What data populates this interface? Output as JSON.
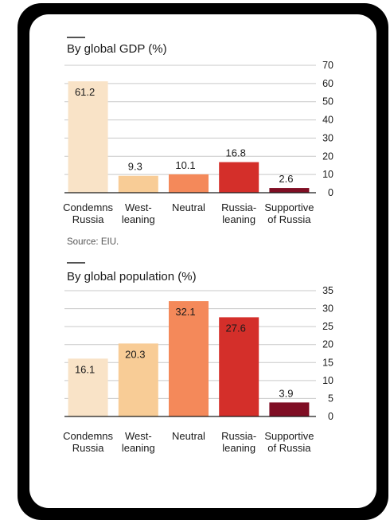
{
  "chart_data": [
    {
      "type": "bar",
      "title": "By global GDP (%)",
      "categories": [
        [
          "Condemns",
          "Russia"
        ],
        [
          "West-",
          "leaning"
        ],
        [
          "Neutral"
        ],
        [
          "Russia-",
          "leaning"
        ],
        [
          "Supportive",
          "of Russia"
        ]
      ],
      "values": [
        61.2,
        9.3,
        10.1,
        16.8,
        2.6
      ],
      "value_labels": [
        "61.2",
        "9.3",
        "10.1",
        "16.8",
        "2.6"
      ],
      "colors": [
        "#f9e3c7",
        "#f8cc96",
        "#f4895a",
        "#d42f2a",
        "#7f0e24"
      ],
      "ylim": [
        0,
        70
      ],
      "yticks": [
        0,
        10,
        20,
        30,
        40,
        50,
        60,
        70
      ],
      "y_axis_side": "right",
      "grid": true,
      "source": "Source: EIU."
    },
    {
      "type": "bar",
      "title": "By global population (%)",
      "categories": [
        [
          "Condemns",
          "Russia"
        ],
        [
          "West-",
          "leaning"
        ],
        [
          "Neutral"
        ],
        [
          "Russia-",
          "leaning"
        ],
        [
          "Supportive",
          "of Russia"
        ]
      ],
      "values": [
        16.1,
        20.3,
        32.1,
        27.6,
        3.9
      ],
      "value_labels": [
        "16.1",
        "20.3",
        "32.1",
        "27.6",
        "3.9"
      ],
      "colors": [
        "#f9e3c7",
        "#f8cc96",
        "#f4895a",
        "#d42f2a",
        "#7f0e24"
      ],
      "ylim": [
        0,
        35
      ],
      "yticks": [
        0,
        5,
        10,
        15,
        20,
        25,
        30,
        35
      ],
      "y_axis_side": "right",
      "grid": true
    }
  ]
}
